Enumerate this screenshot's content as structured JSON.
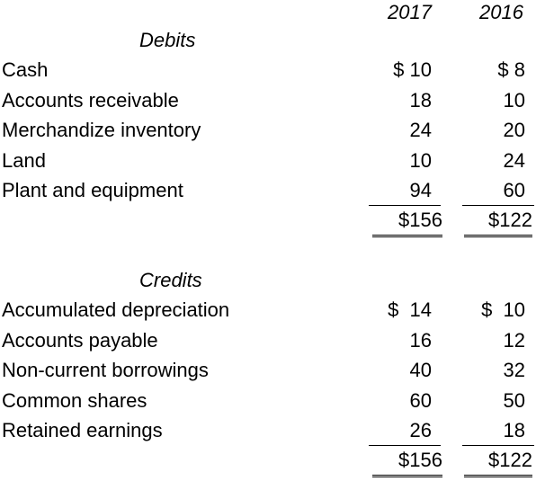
{
  "years": [
    "2017",
    "2016"
  ],
  "debits": {
    "title": "Debits",
    "rows": [
      {
        "label": "Cash",
        "v2017": "$ 10",
        "v2016": "$ 8"
      },
      {
        "label": "Accounts receivable",
        "v2017": "18",
        "v2016": "10"
      },
      {
        "label": "Merchandize inventory",
        "v2017": "24",
        "v2016": "20"
      },
      {
        "label": "Land",
        "v2017": "10",
        "v2016": "24"
      },
      {
        "label": "Plant and equipment",
        "v2017": "94",
        "v2016": "60"
      }
    ],
    "total": {
      "v2017": "$156",
      "v2016": "$122"
    }
  },
  "credits": {
    "title": "Credits",
    "rows": [
      {
        "label": "Accumulated depreciation",
        "v2017": "$  14",
        "v2016": "$  10"
      },
      {
        "label": "Accounts payable",
        "v2017": "16",
        "v2016": "12"
      },
      {
        "label": "Non-current borrowings",
        "v2017": "40",
        "v2016": "32"
      },
      {
        "label": "Common shares",
        "v2017": "60",
        "v2016": "50"
      },
      {
        "label": "Retained earnings",
        "v2017": "26",
        "v2016": "18"
      }
    ],
    "total": {
      "v2017": "$156",
      "v2016": "$122"
    }
  }
}
